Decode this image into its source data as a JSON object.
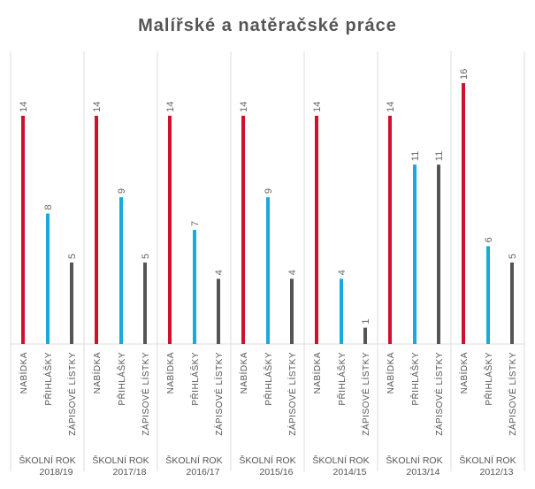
{
  "chart_data": {
    "type": "bar",
    "title": "Malířské a natěračské práce",
    "bar_labels": [
      "NABÍDKA",
      "PŘIHLÁŠKY",
      "ZÁPISOVÉ LÍSTKY"
    ],
    "group_label": "ŠKOLNÍ ROK",
    "categories": [
      "2018/19",
      "2017/18",
      "2016/17",
      "2015/16",
      "2014/15",
      "2013/14",
      "2012/13"
    ],
    "series": [
      {
        "name": "NABÍDKA",
        "color": "#d0112b",
        "values": [
          14,
          14,
          14,
          14,
          14,
          14,
          16
        ]
      },
      {
        "name": "PŘIHLÁŠKY",
        "color": "#1aa9dc",
        "values": [
          8,
          9,
          7,
          9,
          4,
          11,
          6
        ]
      },
      {
        "name": "ZÁPISOVÉ LÍSTKY",
        "color": "#555555",
        "values": [
          5,
          5,
          4,
          4,
          1,
          11,
          5
        ]
      }
    ],
    "ylim": [
      0,
      16
    ],
    "xlabel": "",
    "ylabel": "",
    "grid": false,
    "legend": "none",
    "data_labels": true
  }
}
